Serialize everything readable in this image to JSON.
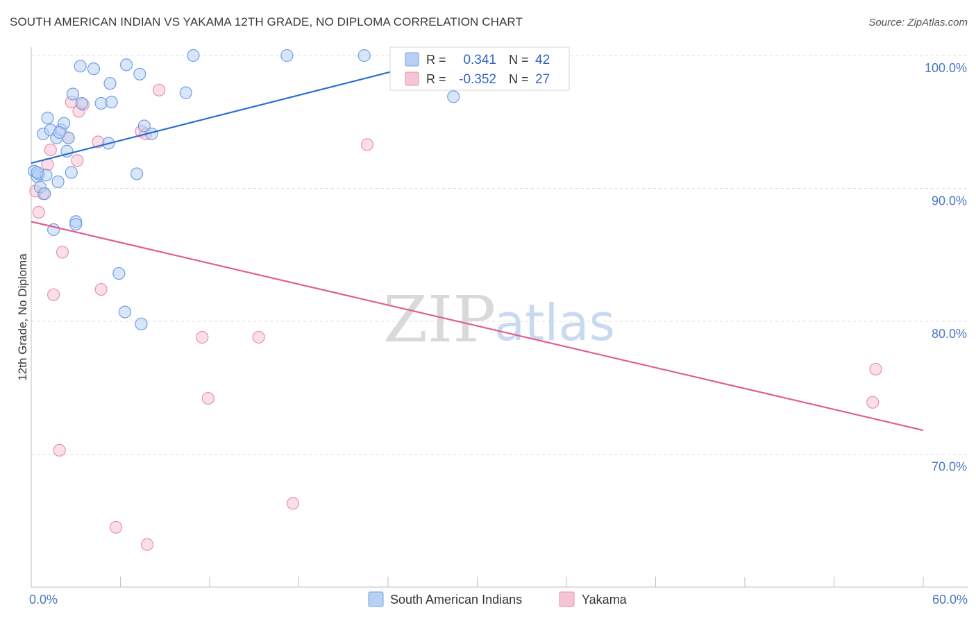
{
  "title": "SOUTH AMERICAN INDIAN VS YAKAMA 12TH GRADE, NO DIPLOMA CORRELATION CHART",
  "source": "Source: ZipAtlas.com",
  "watermark": {
    "zip": "ZIP",
    "atlas": "atlas"
  },
  "colors": {
    "blue": "#6ea0e6",
    "blue_fill": "#b9d0f3",
    "blue_line": "#2a6fcf",
    "pink": "#eb8fae",
    "pink_fill": "#f6c4d5",
    "pink_line": "#e0608f"
  },
  "legend_top": {
    "r_label": "R =",
    "n_label": "N =",
    "rows": [
      {
        "r": "0.341",
        "n": "42"
      },
      {
        "r": "-0.352",
        "n": "27"
      }
    ]
  },
  "chart_data": {
    "type": "scatter",
    "title": "SOUTH AMERICAN INDIAN VS YAKAMA 12TH GRADE, NO DIPLOMA CORRELATION CHART",
    "xlabel": "",
    "ylabel": "12th Grade, No Diploma",
    "xlim": [
      0,
      60
    ],
    "ylim": [
      60,
      100
    ],
    "x_tick_labels": [
      "0.0%",
      "60.0%"
    ],
    "y_ticks": [
      70,
      80,
      90,
      100
    ],
    "y_tick_labels": [
      "70.0%",
      "80.0%",
      "90.0%",
      "100.0%"
    ],
    "legend": [
      "South American Indians",
      "Yakama"
    ],
    "series": [
      {
        "name": "South American Indians",
        "r": 0.341,
        "n": 42,
        "trend": {
          "x": [
            0,
            28.5
          ],
          "y": [
            91.9,
            100.0
          ]
        },
        "points": [
          [
            0.2,
            91.3
          ],
          [
            0.4,
            90.9
          ],
          [
            0.5,
            91.1
          ],
          [
            0.6,
            90.1
          ],
          [
            0.8,
            94.1
          ],
          [
            0.9,
            89.6
          ],
          [
            1.0,
            91.0
          ],
          [
            1.1,
            95.3
          ],
          [
            1.3,
            94.4
          ],
          [
            1.5,
            86.9
          ],
          [
            1.7,
            93.8
          ],
          [
            1.8,
            90.5
          ],
          [
            2.0,
            94.4
          ],
          [
            2.2,
            94.9
          ],
          [
            2.4,
            92.8
          ],
          [
            2.5,
            93.8
          ],
          [
            2.7,
            91.2
          ],
          [
            2.8,
            97.1
          ],
          [
            3.0,
            87.5
          ],
          [
            3.0,
            87.3
          ],
          [
            3.3,
            99.2
          ],
          [
            3.4,
            96.4
          ],
          [
            4.2,
            99.0
          ],
          [
            4.7,
            96.4
          ],
          [
            5.2,
            93.4
          ],
          [
            5.3,
            97.9
          ],
          [
            5.4,
            96.5
          ],
          [
            5.9,
            83.6
          ],
          [
            6.3,
            80.7
          ],
          [
            6.4,
            99.3
          ],
          [
            7.1,
            91.1
          ],
          [
            7.3,
            98.6
          ],
          [
            7.4,
            79.8
          ],
          [
            7.6,
            94.7
          ],
          [
            8.1,
            94.1
          ],
          [
            10.4,
            97.2
          ],
          [
            10.9,
            100.0
          ],
          [
            17.2,
            100.0
          ],
          [
            22.4,
            100.0
          ],
          [
            28.4,
            96.9
          ],
          [
            0.4,
            91.2
          ],
          [
            1.9,
            94.2
          ]
        ]
      },
      {
        "name": "Yakama",
        "r": -0.352,
        "n": 27,
        "trend": {
          "x": [
            0,
            60
          ],
          "y": [
            87.5,
            71.8
          ]
        },
        "points": [
          [
            0.5,
            88.2
          ],
          [
            0.8,
            89.6
          ],
          [
            1.1,
            91.8
          ],
          [
            1.3,
            92.9
          ],
          [
            1.5,
            82.0
          ],
          [
            1.9,
            70.3
          ],
          [
            2.1,
            85.2
          ],
          [
            2.5,
            93.8
          ],
          [
            2.7,
            96.5
          ],
          [
            3.1,
            92.1
          ],
          [
            3.2,
            95.8
          ],
          [
            3.5,
            96.3
          ],
          [
            4.5,
            93.5
          ],
          [
            4.7,
            82.4
          ],
          [
            5.7,
            64.5
          ],
          [
            7.4,
            94.3
          ],
          [
            7.7,
            94.1
          ],
          [
            7.8,
            63.2
          ],
          [
            8.6,
            97.4
          ],
          [
            11.5,
            78.8
          ],
          [
            11.9,
            74.2
          ],
          [
            15.3,
            78.8
          ],
          [
            17.6,
            66.3
          ],
          [
            22.6,
            93.3
          ],
          [
            56.6,
            73.9
          ],
          [
            56.8,
            76.4
          ],
          [
            0.3,
            89.8
          ]
        ]
      }
    ]
  }
}
